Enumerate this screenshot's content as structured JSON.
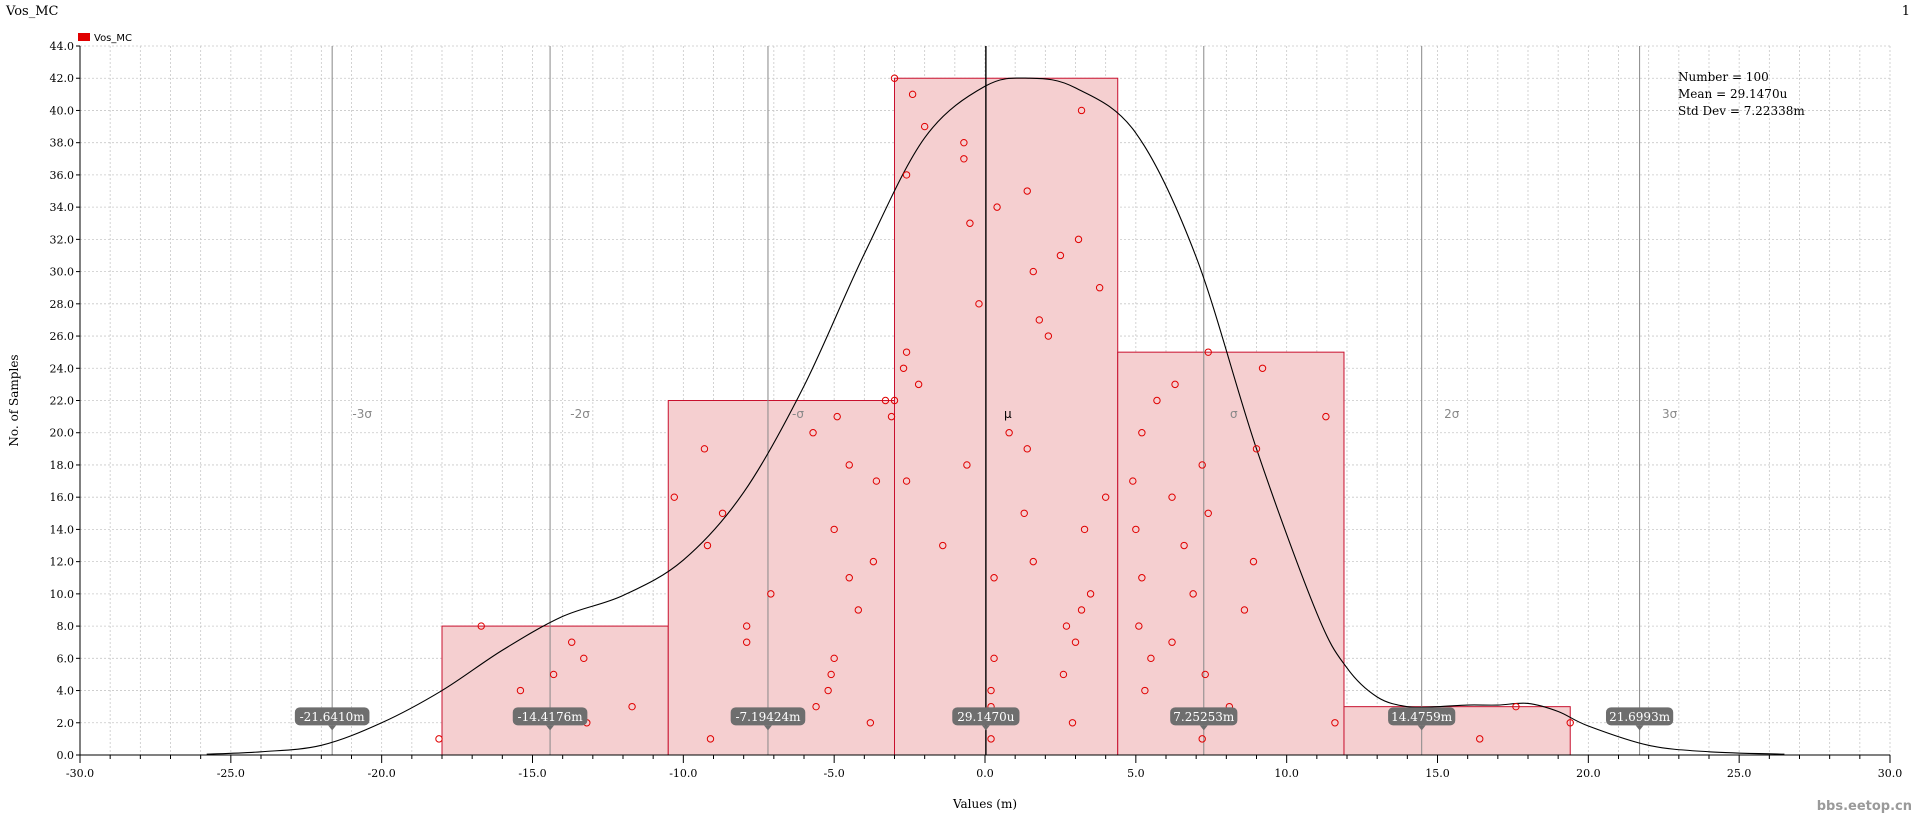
{
  "window": {
    "title": "Vos_MC",
    "page_number": "1"
  },
  "chart_data": {
    "type": "bar",
    "title": "Vos_MC",
    "xlabel": "Values (m)",
    "ylabel": "No. of Samples",
    "xlim": [
      -30.0,
      30.0
    ],
    "ylim": [
      0.0,
      44.0
    ],
    "xticks": [
      -30,
      -25,
      -20,
      -15,
      -10,
      -5,
      0,
      5,
      10,
      15,
      20,
      25,
      30
    ],
    "xtick_labels": [
      "-30.0",
      "-25.0",
      "-20.0",
      "-15.0",
      "-10.0",
      "-5.0",
      "0.0",
      "5.0",
      "10.0",
      "15.0",
      "20.0",
      "25.0",
      "30.0"
    ],
    "yticks": [
      0,
      2,
      4,
      6,
      8,
      10,
      12,
      14,
      16,
      18,
      20,
      22,
      24,
      26,
      28,
      30,
      32,
      34,
      36,
      38,
      40,
      42,
      44
    ],
    "ytick_labels": [
      "0.0",
      "2.0",
      "4.0",
      "6.0",
      "8.0",
      "10.0",
      "12.0",
      "14.0",
      "16.0",
      "18.0",
      "20.0",
      "22.0",
      "24.0",
      "26.0",
      "28.0",
      "30.0",
      "32.0",
      "34.0",
      "36.0",
      "38.0",
      "40.0",
      "42.0",
      "44.0"
    ],
    "grid": true,
    "legend": {
      "position": "top-left",
      "entries": [
        {
          "name": "Vos_MC",
          "color": "#e00000"
        }
      ]
    },
    "series": [
      {
        "name": "Vos_MC",
        "bins": [
          {
            "x0": -18.0,
            "x1": -10.5,
            "count": 8
          },
          {
            "x0": -10.5,
            "x1": -3.0,
            "count": 22
          },
          {
            "x0": -3.0,
            "x1": 4.4,
            "count": 42
          },
          {
            "x0": 4.4,
            "x1": 11.9,
            "count": 25
          },
          {
            "x0": 11.9,
            "x1": 19.4,
            "count": 3
          }
        ],
        "points": [
          [
            -18.1,
            1
          ],
          [
            -16.7,
            8
          ],
          [
            -15.4,
            4
          ],
          [
            -14.3,
            5
          ],
          [
            -13.7,
            7
          ],
          [
            -13.3,
            6
          ],
          [
            -13.2,
            2
          ],
          [
            -11.7,
            3
          ],
          [
            -10.3,
            16
          ],
          [
            -9.3,
            19
          ],
          [
            -9.2,
            13
          ],
          [
            -9.1,
            1
          ],
          [
            -8.7,
            15
          ],
          [
            -7.9,
            8
          ],
          [
            -7.9,
            7
          ],
          [
            -7.1,
            10
          ],
          [
            -5.7,
            20
          ],
          [
            -5.6,
            3
          ],
          [
            -5.2,
            4
          ],
          [
            -5.1,
            5
          ],
          [
            -5.0,
            6
          ],
          [
            -5.0,
            14
          ],
          [
            -4.9,
            21
          ],
          [
            -4.5,
            18
          ],
          [
            -4.5,
            11
          ],
          [
            -4.2,
            9
          ],
          [
            -3.8,
            2
          ],
          [
            -3.7,
            12
          ],
          [
            -3.6,
            17
          ],
          [
            -3.3,
            22
          ],
          [
            -3.1,
            21
          ],
          [
            -3.0,
            22
          ],
          [
            -3.0,
            42
          ],
          [
            -2.7,
            24
          ],
          [
            -2.6,
            17
          ],
          [
            -2.6,
            25
          ],
          [
            -2.6,
            36
          ],
          [
            -2.4,
            41
          ],
          [
            -2.2,
            23
          ],
          [
            -2.0,
            39
          ],
          [
            -1.4,
            13
          ],
          [
            -0.7,
            38
          ],
          [
            -0.7,
            37
          ],
          [
            -0.6,
            18
          ],
          [
            -0.5,
            33
          ],
          [
            -0.2,
            28
          ],
          [
            0.2,
            1
          ],
          [
            0.2,
            3
          ],
          [
            0.2,
            4
          ],
          [
            0.3,
            11
          ],
          [
            0.3,
            6
          ],
          [
            0.4,
            34
          ],
          [
            0.8,
            20
          ],
          [
            1.3,
            15
          ],
          [
            1.4,
            19
          ],
          [
            1.4,
            35
          ],
          [
            1.6,
            30
          ],
          [
            1.6,
            12
          ],
          [
            1.8,
            27
          ],
          [
            2.1,
            26
          ],
          [
            2.5,
            31
          ],
          [
            2.6,
            5
          ],
          [
            2.7,
            8
          ],
          [
            2.9,
            2
          ],
          [
            3.0,
            7
          ],
          [
            3.1,
            32
          ],
          [
            3.2,
            9
          ],
          [
            3.2,
            40
          ],
          [
            3.3,
            14
          ],
          [
            3.5,
            10
          ],
          [
            3.8,
            29
          ],
          [
            4.0,
            16
          ],
          [
            4.9,
            17
          ],
          [
            5.0,
            14
          ],
          [
            5.1,
            8
          ],
          [
            5.2,
            20
          ],
          [
            5.2,
            11
          ],
          [
            5.3,
            4
          ],
          [
            5.5,
            6
          ],
          [
            5.7,
            22
          ],
          [
            6.2,
            16
          ],
          [
            6.2,
            7
          ],
          [
            6.3,
            23
          ],
          [
            6.6,
            13
          ],
          [
            6.9,
            10
          ],
          [
            7.2,
            1
          ],
          [
            7.2,
            18
          ],
          [
            7.3,
            5
          ],
          [
            7.4,
            15
          ],
          [
            7.4,
            25
          ],
          [
            8.1,
            3
          ],
          [
            8.6,
            9
          ],
          [
            8.9,
            12
          ],
          [
            9.0,
            19
          ],
          [
            9.2,
            24
          ],
          [
            11.3,
            21
          ],
          [
            11.6,
            2
          ],
          [
            16.4,
            1
          ],
          [
            17.6,
            3
          ],
          [
            19.4,
            2
          ]
        ]
      }
    ],
    "density_curve": {
      "x": [
        -25.8,
        -24,
        -22,
        -20,
        -18,
        -16,
        -14,
        -12,
        -10,
        -8,
        -6,
        -4,
        -2,
        0,
        1.5,
        3,
        5,
        7,
        9,
        11,
        12,
        13,
        14,
        15,
        16,
        17,
        18,
        19,
        20,
        22,
        24,
        26.5
      ],
      "y": [
        0.05,
        0.2,
        0.6,
        2.0,
        4.0,
        6.5,
        8.6,
        9.9,
        12.1,
        16.3,
        22.9,
        31.1,
        38.3,
        41.5,
        42.0,
        41.4,
        38.6,
        30.9,
        19.0,
        8.8,
        5.4,
        3.6,
        3.0,
        3.0,
        3.1,
        3.1,
        3.2,
        2.7,
        1.8,
        0.6,
        0.2,
        0.05
      ]
    },
    "sigma_lines": [
      {
        "label": "-3σ",
        "x": -21.641,
        "value_label": "-21.6410m"
      },
      {
        "label": "-2σ",
        "x": -14.4176,
        "value_label": "-14.4176m"
      },
      {
        "label": "-σ",
        "x": -7.19424,
        "value_label": "-7.19424m"
      },
      {
        "label": "μ",
        "x": 0.029147,
        "value_label": "29.1470u"
      },
      {
        "label": "σ",
        "x": 7.25253,
        "value_label": "7.25253m"
      },
      {
        "label": "2σ",
        "x": 14.4759,
        "value_label": "14.4759m"
      },
      {
        "label": "3σ",
        "x": 21.6993,
        "value_label": "21.6993m"
      }
    ],
    "stats": [
      "Number = 100",
      "Mean = 29.1470u",
      "Std Dev = 7.22338m"
    ],
    "colors": {
      "bar_fill": "#f5cfd0",
      "bar_stroke": "#c8102e",
      "point_stroke": "#e00000",
      "curve": "#000000",
      "grid": "#c8c8c8",
      "sigma_line": "#888888",
      "mu_line": "#000000",
      "tag_bg": "#6e6e6e",
      "tag_text": "#ffffff"
    },
    "watermark": "bbs.eetop.cn"
  }
}
